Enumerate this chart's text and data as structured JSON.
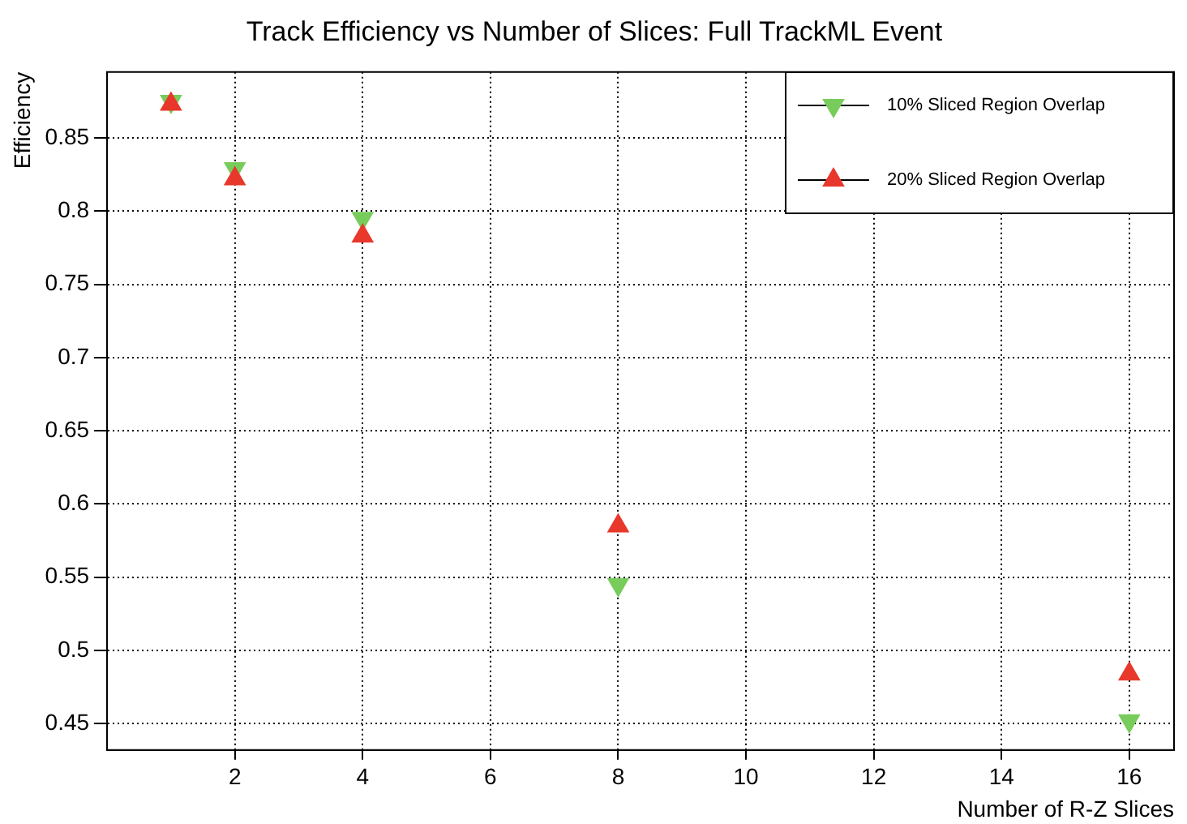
{
  "chart_data": {
    "type": "scatter",
    "title": "Track Efficiency vs Number of Slices: Full TrackML Event",
    "xlabel": "Number of R-Z Slices",
    "ylabel": "Efficiency",
    "x": [
      1,
      2,
      4,
      8,
      16
    ],
    "series": [
      {
        "name": "10% Sliced Region Overlap",
        "color": "#77cc5b",
        "marker": "triangle-down",
        "values": [
          0.875,
          0.829,
          0.795,
          0.545,
          0.452
        ]
      },
      {
        "name": "20% Sliced Region Overlap",
        "color": "#e8382b",
        "marker": "triangle",
        "values": [
          0.873,
          0.822,
          0.783,
          0.585,
          0.484
        ]
      }
    ],
    "xlim": [
      0,
      16.7
    ],
    "xticks": [
      2,
      4,
      6,
      8,
      10,
      12,
      14,
      16
    ],
    "ylim": [
      0.432,
      0.895
    ],
    "yticks": [
      {
        "value": 0.45,
        "label": "0.45"
      },
      {
        "value": 0.5,
        "label": "0.5"
      },
      {
        "value": 0.55,
        "label": "0.55"
      },
      {
        "value": 0.6,
        "label": "0.6"
      },
      {
        "value": 0.65,
        "label": "0.65"
      },
      {
        "value": 0.7,
        "label": "0.7"
      },
      {
        "value": 0.75,
        "label": "0.75"
      },
      {
        "value": 0.8,
        "label": "0.8"
      },
      {
        "value": 0.85,
        "label": "0.85"
      }
    ],
    "grid": true,
    "legend": "top right",
    "line_style": "dotted"
  }
}
